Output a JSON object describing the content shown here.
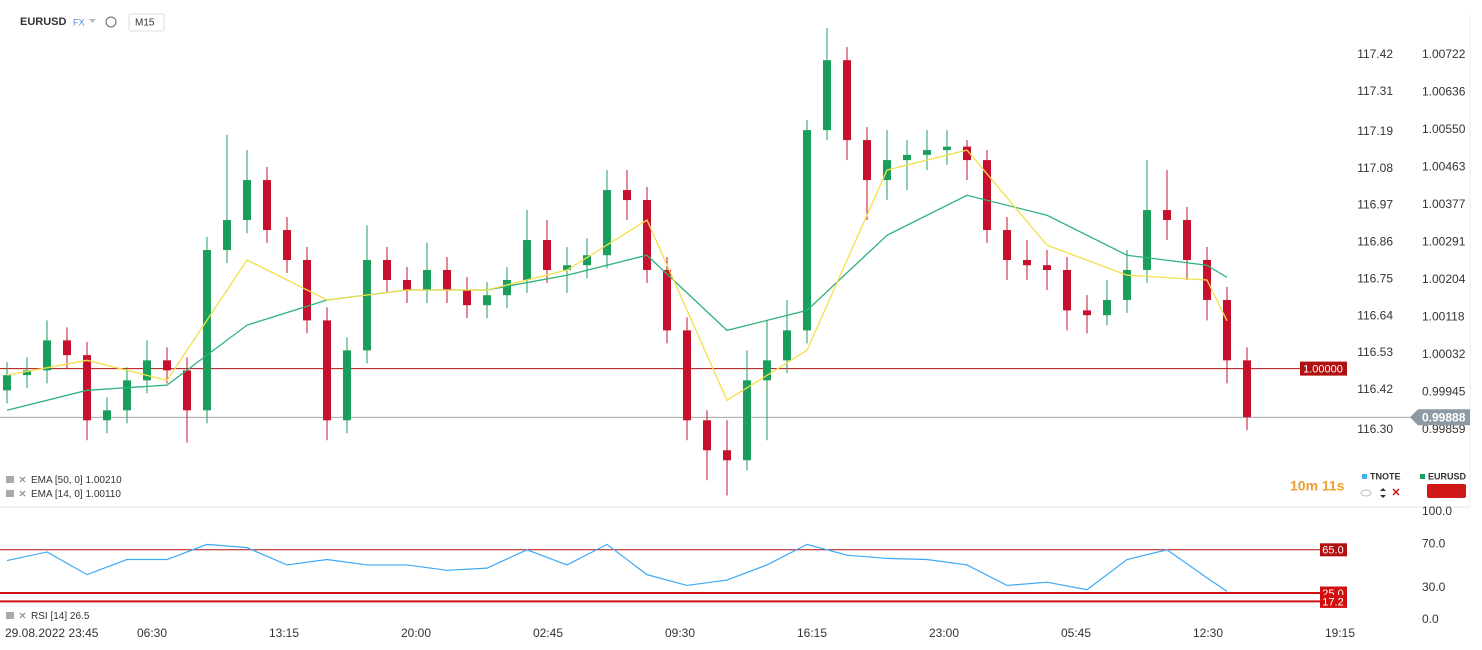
{
  "header": {
    "symbol": "EURUSD",
    "market": "FX",
    "timeframe": "M15"
  },
  "countdown": "10m 11s",
  "chart_data": [
    {
      "type": "candlestick",
      "xlim": [
        -0.35,
        69.55
      ],
      "ylim": [
        0.99686,
        1.00814
      ],
      "yticks": [
        1.00722,
        1.00636,
        {
          "value": 1.0055,
          "label": "1.00550"
        },
        1.00463,
        1.00377,
        1.00291,
        1.00204,
        1.00118,
        1.00032,
        0.99945,
        0.99859
      ],
      "y2lim": [
        116.076,
        117.539
      ],
      "y2ticks": [
        117.42,
        117.31,
        117.19,
        117.08,
        116.97,
        116.86,
        116.75,
        116.64,
        116.53,
        116.42,
        {
          "value": 116.3,
          "label": "116.30"
        }
      ],
      "legend": [
        {
          "name": "TNOTE",
          "color": "#3fb3f0"
        },
        {
          "name": "EURUSD",
          "color": "#1a9e5c"
        }
      ],
      "up_color": "#1a9e5c",
      "down_color": "#c8102e",
      "open": [
        0.9995,
        0.99985,
        0.99996,
        1.00065,
        1.00031,
        0.99881,
        0.99904,
        0.99973,
        1.00019,
        0.99996,
        0.99904,
        1.00273,
        1.00342,
        1.00434,
        1.00319,
        1.0025,
        1.00111,
        0.99881,
        1.00042,
        1.0025,
        1.00204,
        1.00181,
        1.00227,
        1.00181,
        1.00146,
        1.00169,
        1.00204,
        1.00296,
        1.00227,
        1.00238,
        1.00261,
        1.00411,
        1.00388,
        1.00227,
        1.00088,
        0.99881,
        0.99812,
        0.99789,
        0.99973,
        1.00019,
        1.00088,
        1.00549,
        1.0071,
        1.00526,
        1.00434,
        1.0048,
        1.00492,
        1.00503,
        1.00511,
        1.0048,
        1.00319,
        1.0025,
        1.00238,
        1.00227,
        1.00134,
        1.00123,
        1.00158,
        1.00227,
        1.00365,
        1.00342,
        1.0025,
        1.00158,
        1.00019
      ],
      "high": [
        1.00015,
        1.00026,
        1.00111,
        1.00095,
        1.00061,
        0.99934,
        1.00003,
        1.00065,
        1.00049,
        1.00026,
        1.00303,
        1.00538,
        1.00503,
        1.00464,
        1.00349,
        1.0028,
        1.00141,
        1.00072,
        1.0033,
        1.0028,
        1.00234,
        1.0029,
        1.00257,
        1.00211,
        1.00199,
        1.00234,
        1.00365,
        1.00342,
        1.0028,
        1.003,
        1.00457,
        1.00457,
        1.00418,
        1.00257,
        1.00118,
        0.99904,
        0.99881,
        1.00042,
        1.00111,
        1.00158,
        1.00572,
        1.00784,
        1.0074,
        1.00556,
        1.00549,
        1.00526,
        1.00549,
        1.00549,
        1.00526,
        1.00503,
        1.00349,
        1.00296,
        1.00273,
        1.00257,
        1.00169,
        1.00204,
        1.00273,
        1.0048,
        1.00457,
        1.00372,
        1.0028,
        1.00188,
        1.00049
      ],
      "low": [
        0.9992,
        0.99955,
        0.99966,
        1.00001,
        0.99835,
        0.99851,
        0.99874,
        0.99943,
        0.99966,
        0.9983,
        0.99874,
        1.00243,
        1.00312,
        1.00289,
        1.0022,
        1.00081,
        0.99835,
        0.99851,
        1.00012,
        1.00174,
        1.00151,
        1.00151,
        1.00151,
        1.00116,
        1.00116,
        1.00139,
        1.00174,
        1.00197,
        1.00174,
        1.00208,
        1.00231,
        1.00342,
        1.00197,
        1.00058,
        0.99835,
        0.99743,
        0.99708,
        0.99766,
        0.99835,
        0.99989,
        1.00058,
        1.00526,
        1.0048,
        1.00342,
        1.00388,
        1.00411,
        1.00457,
        1.00469,
        1.00434,
        1.00289,
        1.00204,
        1.00204,
        1.00181,
        1.00088,
        1.00081,
        1.001,
        1.00128,
        1.00197,
        1.00296,
        1.00204,
        1.00111,
        0.99966,
        0.99858
      ],
      "close": [
        0.99985,
        0.99996,
        1.00065,
        1.00031,
        0.99881,
        0.99904,
        0.99973,
        1.00019,
        0.99996,
        0.99904,
        1.00273,
        1.00342,
        1.00434,
        1.00319,
        1.0025,
        1.00111,
        0.99881,
        1.00042,
        1.0025,
        1.00204,
        1.00181,
        1.00227,
        1.00181,
        1.00146,
        1.00169,
        1.00204,
        1.00296,
        1.00227,
        1.00238,
        1.00261,
        1.00411,
        1.00388,
        1.00227,
        1.00088,
        0.99881,
        0.99812,
        0.99789,
        0.99973,
        1.00019,
        1.00088,
        1.00549,
        1.0071,
        1.00526,
        1.00434,
        1.0048,
        1.00492,
        1.00503,
        1.00511,
        1.0048,
        1.00319,
        1.0025,
        1.00238,
        1.00227,
        1.00134,
        1.00123,
        1.00158,
        1.00227,
        1.00365,
        1.00342,
        1.0025,
        1.00158,
        1.00019,
        0.99888
      ],
      "lines": [
        {
          "name": "EMA [50, 0]",
          "value_label": "1.00210",
          "color": "#2db37a",
          "x": [
            0,
            4,
            8,
            12,
            16,
            20,
            24,
            28,
            32,
            36,
            40,
            44,
            48,
            52,
            56,
            60,
            61
          ],
          "values": [
            0.99904,
            0.9995,
            0.99962,
            1.001,
            1.00158,
            1.00181,
            1.00181,
            1.00215,
            1.00261,
            1.00088,
            1.00134,
            1.00307,
            1.00399,
            1.00353,
            1.00261,
            1.00238,
            1.0021
          ]
        },
        {
          "name": "EMA [14, 0]",
          "value_label": "1.00110",
          "color": "#f3e04a",
          "x": [
            0,
            4,
            8,
            12,
            16,
            20,
            24,
            28,
            32,
            36,
            40,
            44,
            48,
            52,
            56,
            60,
            61
          ],
          "values": [
            0.99985,
            1.00019,
            0.99973,
            1.0025,
            1.00158,
            1.00181,
            1.00181,
            1.00227,
            1.00342,
            0.99927,
            1.00042,
            1.00457,
            1.00503,
            1.00284,
            1.00215,
            1.00204,
            1.0011
          ]
        }
      ],
      "hlines": [
        {
          "value": 1,
          "label": "1.00000",
          "color": "#b01010"
        }
      ],
      "last_price": 0.99888
    },
    {
      "type": "line",
      "name": "RSI [14]",
      "current": 26.5,
      "xlim": [
        -0.35,
        69.55
      ],
      "ylim": [
        0,
        100
      ],
      "yticks": [
        {
          "value": 100,
          "label": "100.0"
        },
        {
          "value": 70,
          "label": "70.0"
        },
        {
          "value": 30,
          "label": "30.0"
        },
        {
          "value": 0,
          "label": "0.0"
        }
      ],
      "xticks": [
        {
          "value": 0.65,
          "label": "29.08.2022 23:45"
        },
        {
          "value": 7.25,
          "label": "06:30"
        },
        {
          "value": 13.85,
          "label": "13:15"
        },
        {
          "value": 20.45,
          "label": "20:00"
        },
        {
          "value": 27.05,
          "label": "02:45"
        },
        {
          "value": 33.65,
          "label": "09:30"
        },
        {
          "value": 40.25,
          "label": "16:15"
        },
        {
          "value": 46.85,
          "label": "23:00"
        },
        {
          "value": 53.45,
          "label": "05:45"
        },
        {
          "value": 60.05,
          "label": "12:30"
        },
        {
          "value": 66.65,
          "label": "19:15"
        }
      ],
      "color": "#3fa9f5",
      "x": [
        0,
        2,
        4,
        6,
        8,
        10,
        12,
        14,
        16,
        18,
        20,
        22,
        24,
        26,
        28,
        30,
        32,
        34,
        36,
        38,
        40,
        42,
        44,
        46,
        48,
        50,
        52,
        54,
        56,
        58,
        60,
        61
      ],
      "values": [
        55,
        63,
        42,
        56,
        56,
        70,
        67,
        51,
        56,
        51,
        51,
        46,
        48,
        65,
        51,
        70,
        42,
        32,
        37,
        51,
        70,
        60,
        57,
        56,
        51,
        32,
        35,
        28,
        56,
        65,
        39,
        26.5
      ],
      "hlines": [
        {
          "value": 65,
          "label": "65.0",
          "color": "#b01010"
        },
        {
          "value": 25,
          "label": "25.0",
          "color": "#d01010"
        },
        {
          "value": 17.2,
          "label": "17.2",
          "color": "#d01010"
        }
      ]
    }
  ]
}
